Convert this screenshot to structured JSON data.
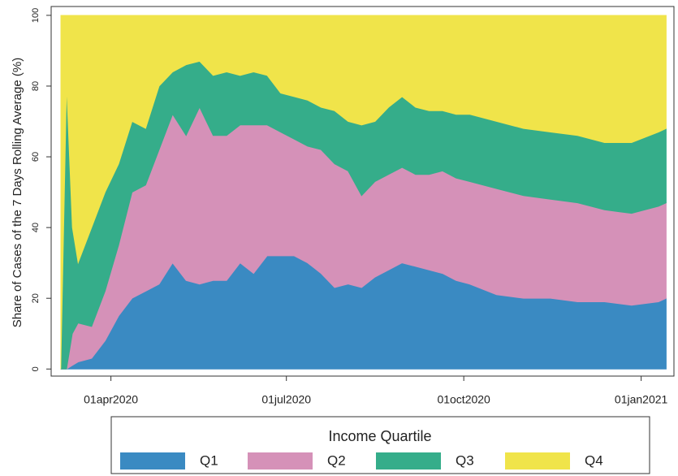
{
  "chart_data": {
    "type": "stacked_area",
    "y_label": "Share of Cases of the 7 Days Rolling Average (%)",
    "legend_title": "Income Quartile",
    "legend_position": "bottom",
    "x": [
      "2020-03-06",
      "2020-03-09",
      "2020-03-12",
      "2020-03-15",
      "2020-03-22",
      "2020-03-29",
      "2020-04-05",
      "2020-04-12",
      "2020-04-19",
      "2020-04-26",
      "2020-05-03",
      "2020-05-10",
      "2020-05-17",
      "2020-05-24",
      "2020-05-31",
      "2020-06-07",
      "2020-06-14",
      "2020-06-21",
      "2020-06-28",
      "2020-07-05",
      "2020-07-12",
      "2020-07-19",
      "2020-07-26",
      "2020-08-02",
      "2020-08-09",
      "2020-08-16",
      "2020-08-23",
      "2020-08-30",
      "2020-09-06",
      "2020-09-13",
      "2020-09-20",
      "2020-09-27",
      "2020-10-04",
      "2020-10-18",
      "2020-11-01",
      "2020-11-15",
      "2020-11-29",
      "2020-12-13",
      "2020-12-27",
      "2021-01-10",
      "2021-01-14"
    ],
    "series": [
      {
        "name": "Q1",
        "color": "#3a8ac2",
        "values": [
          0,
          0,
          1,
          2,
          3,
          8,
          15,
          20,
          22,
          24,
          30,
          25,
          24,
          25,
          25,
          30,
          27,
          32,
          32,
          32,
          30,
          27,
          23,
          24,
          23,
          26,
          28,
          30,
          29,
          28,
          27,
          25,
          24,
          21,
          20,
          20,
          19,
          19,
          18,
          19,
          20
        ]
      },
      {
        "name": "Q2",
        "color": "#d591b8",
        "values": [
          0,
          0,
          9,
          11,
          9,
          14,
          20,
          30,
          30,
          38,
          42,
          41,
          50,
          41,
          41,
          39,
          42,
          37,
          35,
          33,
          33,
          35,
          35,
          32,
          26,
          27,
          27,
          27,
          26,
          27,
          29,
          29,
          29,
          30,
          29,
          28,
          28,
          26,
          26,
          27,
          27
        ]
      },
      {
        "name": "Q3",
        "color": "#35ad8a",
        "values": [
          0,
          80,
          30,
          17,
          28,
          28,
          23,
          20,
          16,
          18,
          12,
          20,
          13,
          17,
          18,
          14,
          15,
          14,
          11,
          12,
          13,
          12,
          15,
          14,
          20,
          17,
          19,
          20,
          19,
          18,
          17,
          18,
          19,
          19,
          19,
          19,
          19,
          19,
          20,
          21,
          21
        ]
      },
      {
        "name": "Q4",
        "color": "#f0e44a",
        "values": [
          100,
          20,
          60,
          70,
          60,
          50,
          42,
          30,
          32,
          20,
          16,
          14,
          13,
          17,
          16,
          17,
          16,
          17,
          22,
          23,
          24,
          26,
          27,
          30,
          31,
          30,
          26,
          23,
          26,
          27,
          27,
          28,
          28,
          30,
          32,
          33,
          34,
          36,
          36,
          33,
          32
        ]
      }
    ],
    "xlim": [
      "2020-03-01",
      "2021-01-18"
    ],
    "xticks": [
      {
        "value": "2020-04-01",
        "label": "01apr2020"
      },
      {
        "value": "2020-07-01",
        "label": "01jul2020"
      },
      {
        "value": "2020-10-01",
        "label": "01oct2020"
      },
      {
        "value": "2021-01-01",
        "label": "01jan2021"
      }
    ],
    "ylim": [
      -2,
      102.5
    ],
    "yticks": [
      0,
      20,
      40,
      60,
      80,
      100
    ],
    "grid": false
  }
}
